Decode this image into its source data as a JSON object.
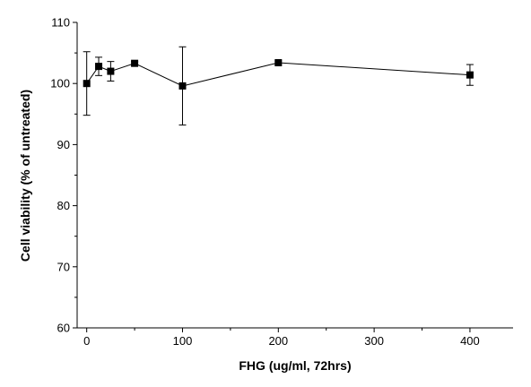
{
  "chart_data": {
    "type": "line",
    "title": "",
    "xlabel": "FHG (ug/ml, 72hrs)",
    "ylabel": "Cell viability (% of untreated)",
    "xlim": [
      -10,
      445
    ],
    "ylim": [
      60,
      110
    ],
    "xticks": [
      0,
      100,
      200,
      300,
      400
    ],
    "yticks": [
      60,
      70,
      80,
      90,
      100,
      110
    ],
    "grid": false,
    "legend": "none",
    "series": [
      {
        "marker": "square",
        "color": "#000000",
        "x": [
          0,
          12.5,
          25,
          50,
          100,
          200,
          400
        ],
        "y": [
          100.0,
          102.8,
          102.0,
          103.3,
          99.6,
          103.4,
          101.4
        ],
        "error": [
          5.2,
          1.5,
          1.6,
          0.3,
          6.4,
          0.3,
          1.7
        ]
      }
    ]
  }
}
